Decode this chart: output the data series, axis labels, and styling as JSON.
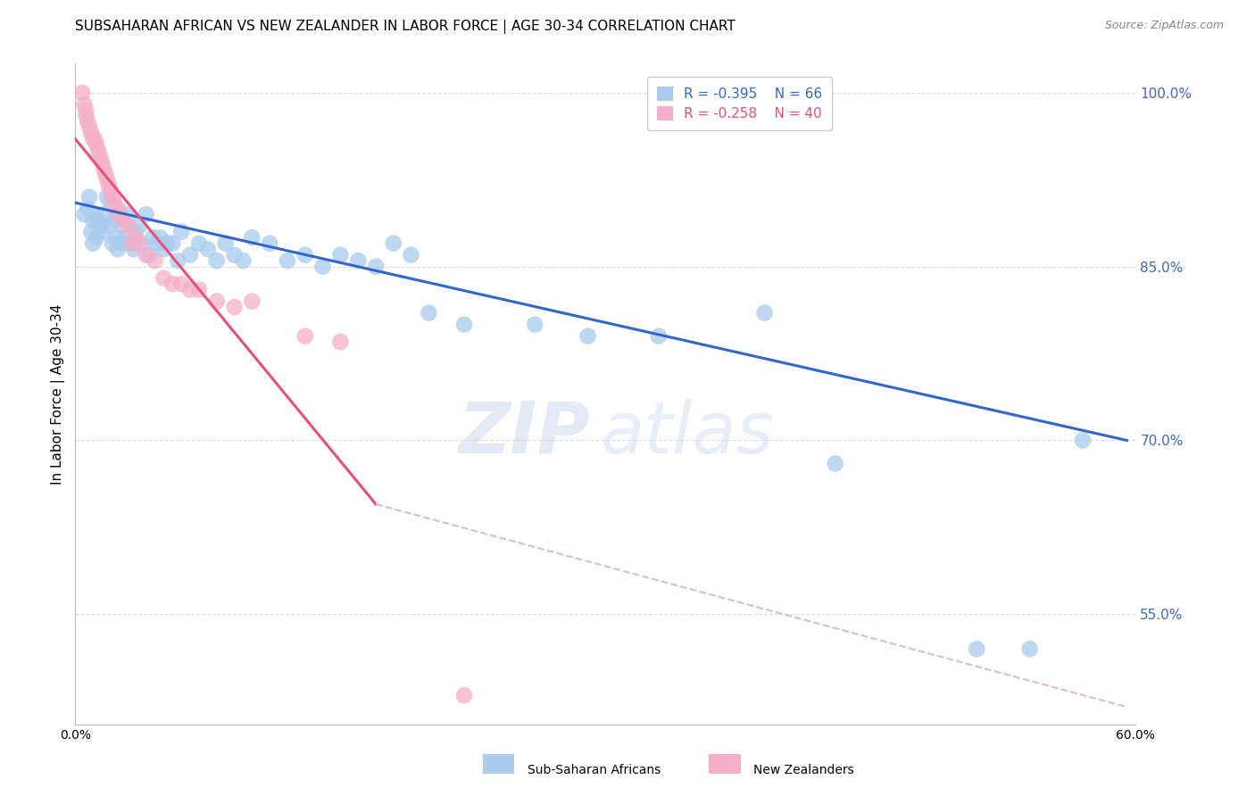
{
  "title": "SUBSAHARAN AFRICAN VS NEW ZEALANDER IN LABOR FORCE | AGE 30-34 CORRELATION CHART",
  "source": "Source: ZipAtlas.com",
  "ylabel": "In Labor Force | Age 30-34",
  "xlim": [
    0.0,
    0.6
  ],
  "ylim": [
    0.455,
    1.025
  ],
  "xticks": [
    0.0,
    0.1,
    0.2,
    0.3,
    0.4,
    0.5,
    0.6
  ],
  "xticklabels": [
    "0.0%",
    "",
    "",
    "",
    "",
    "",
    "60.0%"
  ],
  "ytick_positions": [
    0.55,
    0.7,
    0.85,
    1.0
  ],
  "ytick_labels": [
    "55.0%",
    "70.0%",
    "85.0%",
    "100.0%"
  ],
  "blue_r": -0.395,
  "blue_n": 66,
  "pink_r": -0.258,
  "pink_n": 40,
  "blue_color": "#aaccee",
  "pink_color": "#f4b0c8",
  "blue_line_color": "#3366cc",
  "pink_line_color": "#e8507a",
  "dashed_line_color": "#ddbbcc",
  "legend_blue_label": "Sub-Saharan Africans",
  "legend_pink_label": "New Zealanders",
  "blue_scatter_x": [
    0.005,
    0.007,
    0.008,
    0.009,
    0.01,
    0.01,
    0.011,
    0.012,
    0.013,
    0.014,
    0.015,
    0.016,
    0.018,
    0.019,
    0.02,
    0.021,
    0.022,
    0.023,
    0.024,
    0.025,
    0.026,
    0.027,
    0.028,
    0.03,
    0.031,
    0.033,
    0.034,
    0.036,
    0.038,
    0.04,
    0.042,
    0.044,
    0.046,
    0.048,
    0.05,
    0.052,
    0.055,
    0.058,
    0.06,
    0.065,
    0.07,
    0.075,
    0.08,
    0.085,
    0.09,
    0.095,
    0.1,
    0.11,
    0.12,
    0.13,
    0.14,
    0.15,
    0.16,
    0.17,
    0.18,
    0.19,
    0.2,
    0.22,
    0.26,
    0.29,
    0.33,
    0.39,
    0.43,
    0.51,
    0.54,
    0.57
  ],
  "blue_scatter_y": [
    0.895,
    0.9,
    0.91,
    0.88,
    0.89,
    0.87,
    0.895,
    0.875,
    0.89,
    0.885,
    0.88,
    0.895,
    0.91,
    0.885,
    0.905,
    0.87,
    0.89,
    0.875,
    0.865,
    0.895,
    0.87,
    0.885,
    0.875,
    0.895,
    0.87,
    0.865,
    0.88,
    0.885,
    0.87,
    0.895,
    0.86,
    0.875,
    0.87,
    0.875,
    0.865,
    0.87,
    0.87,
    0.855,
    0.88,
    0.86,
    0.87,
    0.865,
    0.855,
    0.87,
    0.86,
    0.855,
    0.875,
    0.87,
    0.855,
    0.86,
    0.85,
    0.86,
    0.855,
    0.85,
    0.87,
    0.86,
    0.81,
    0.8,
    0.8,
    0.79,
    0.79,
    0.81,
    0.68,
    0.52,
    0.52,
    0.7
  ],
  "pink_scatter_x": [
    0.004,
    0.005,
    0.006,
    0.006,
    0.007,
    0.008,
    0.009,
    0.01,
    0.011,
    0.012,
    0.013,
    0.014,
    0.015,
    0.016,
    0.017,
    0.018,
    0.019,
    0.02,
    0.021,
    0.022,
    0.024,
    0.025,
    0.027,
    0.03,
    0.032,
    0.034,
    0.036,
    0.04,
    0.045,
    0.05,
    0.055,
    0.06,
    0.065,
    0.07,
    0.08,
    0.09,
    0.1,
    0.13,
    0.15,
    0.22
  ],
  "pink_scatter_y": [
    1.0,
    0.99,
    0.985,
    0.98,
    0.975,
    0.97,
    0.965,
    0.96,
    0.96,
    0.955,
    0.95,
    0.945,
    0.94,
    0.935,
    0.93,
    0.925,
    0.92,
    0.915,
    0.91,
    0.905,
    0.9,
    0.895,
    0.89,
    0.885,
    0.87,
    0.875,
    0.87,
    0.86,
    0.855,
    0.84,
    0.835,
    0.835,
    0.83,
    0.83,
    0.82,
    0.815,
    0.82,
    0.79,
    0.785,
    0.48
  ],
  "blue_trendline_x": [
    0.0,
    0.595
  ],
  "blue_trendline_y": [
    0.905,
    0.7
  ],
  "pink_trendline_x": [
    0.0,
    0.17
  ],
  "pink_trendline_y": [
    0.96,
    0.645
  ],
  "dashed_trendline_x": [
    0.17,
    0.595
  ],
  "dashed_trendline_y": [
    0.645,
    0.47
  ],
  "watermark_line1": "ZIP",
  "watermark_line2": "atlas",
  "background_color": "#ffffff",
  "grid_color": "#dddddd",
  "right_yaxis_color": "#4169b8",
  "title_fontsize": 11,
  "axis_label_fontsize": 11,
  "tick_fontsize": 10,
  "legend_fontsize": 11,
  "source_fontsize": 9
}
